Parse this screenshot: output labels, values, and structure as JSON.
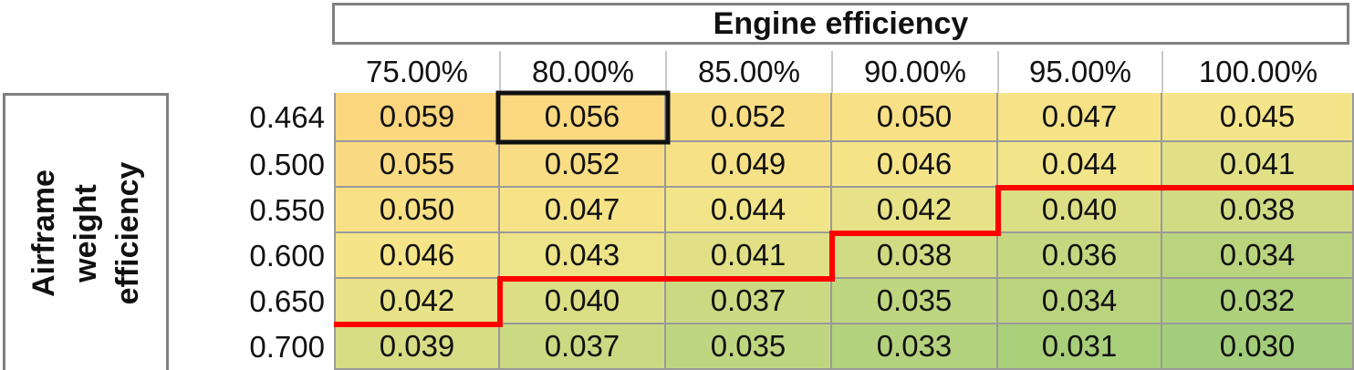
{
  "chart_data": {
    "type": "table",
    "title": "Engine efficiency",
    "row_title": "Airframe\nweight\nefficiency",
    "columns": [
      "75.00%",
      "80.00%",
      "85.00%",
      "90.00%",
      "95.00%",
      "100.00%"
    ],
    "rows": [
      "0.464",
      "0.500",
      "0.550",
      "0.600",
      "0.650",
      "0.700"
    ],
    "values": [
      [
        "0.059",
        "0.056",
        "0.052",
        "0.050",
        "0.047",
        "0.045"
      ],
      [
        "0.055",
        "0.052",
        "0.049",
        "0.046",
        "0.044",
        "0.041"
      ],
      [
        "0.050",
        "0.047",
        "0.044",
        "0.042",
        "0.040",
        "0.038"
      ],
      [
        "0.046",
        "0.043",
        "0.041",
        "0.038",
        "0.036",
        "0.034"
      ],
      [
        "0.042",
        "0.040",
        "0.037",
        "0.035",
        "0.034",
        "0.032"
      ],
      [
        "0.039",
        "0.037",
        "0.035",
        "0.033",
        "0.031",
        "0.030"
      ]
    ],
    "highlighted_cell": {
      "row": 0,
      "col": 1
    },
    "boundary_line": [
      {
        "row_boundary_after": 4,
        "col_start": 0,
        "col_end": 1
      },
      {
        "row_boundary_after": 3,
        "col_start": 1,
        "col_end": 3
      },
      {
        "row_boundary_after": 2,
        "col_start": 3,
        "col_end": 4
      },
      {
        "row_boundary_after": 1,
        "col_start": 4,
        "col_end": 6
      }
    ],
    "colors": {
      "high": "#fcd57f",
      "mid": "#f5e68a",
      "low": "#a3cd7a",
      "boundary_line": "#ff0000",
      "highlight_border": "#111111",
      "frame": "#808080"
    }
  }
}
